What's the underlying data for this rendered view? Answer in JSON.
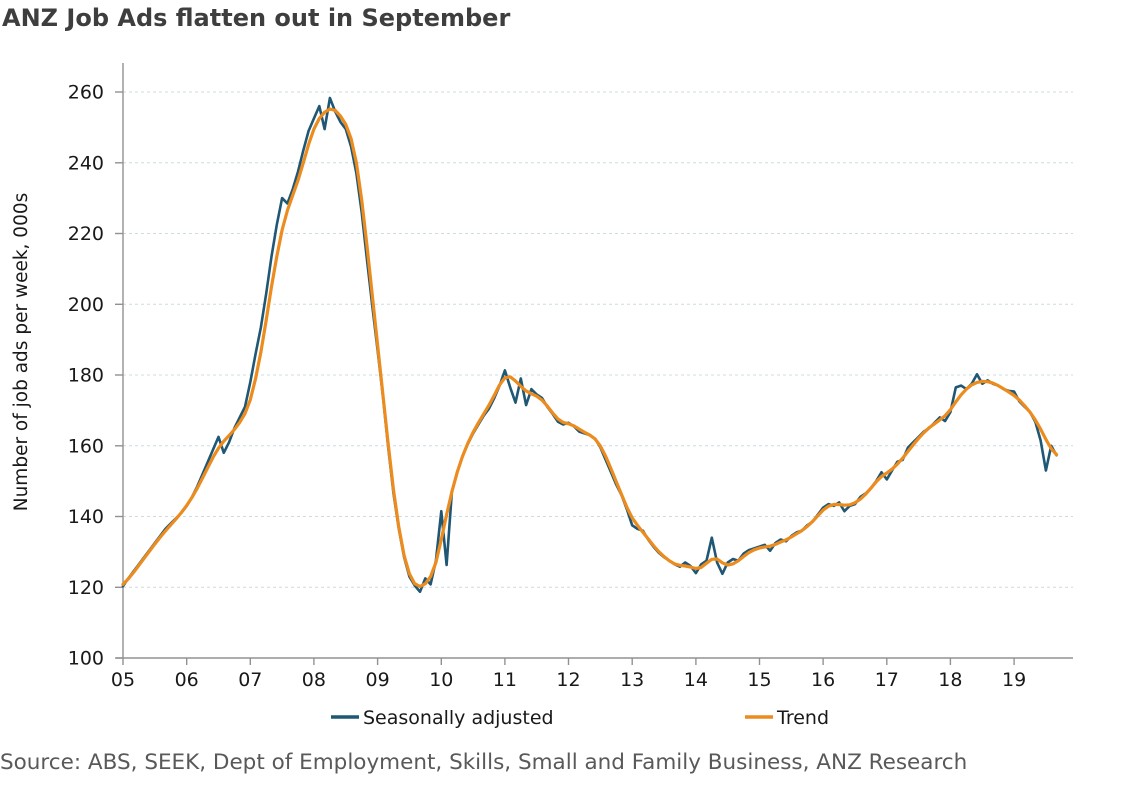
{
  "title": "ANZ Job Ads flatten out in September",
  "source": "Source: ABS, SEEK, Dept of Employment, Skills, Small and Family Business, ANZ Research",
  "chart_data": {
    "type": "line",
    "title": "ANZ Job Ads flatten out in September",
    "xlabel": "",
    "ylabel": "Number of job ads per week, 000s",
    "ylim": [
      100,
      260
    ],
    "y_ticks": [
      100,
      120,
      140,
      160,
      180,
      200,
      220,
      240,
      260
    ],
    "x_tick_labels": [
      "05",
      "06",
      "07",
      "08",
      "09",
      "10",
      "11",
      "12",
      "13",
      "14",
      "15",
      "16",
      "17",
      "18",
      "19"
    ],
    "x_start_year": 2005,
    "x_step": "monthly",
    "x_end": "Sep 2019",
    "grid": "horizontal dashed",
    "legend_position": "bottom",
    "series": [
      {
        "name": "Seasonally adjusted",
        "color": "#1f5774",
        "values": [
          120.3,
          122.5,
          124.5,
          126.5,
          128.5,
          130.5,
          132.5,
          134.5,
          136.5,
          138.0,
          139.5,
          141.0,
          143.0,
          145.5,
          148.5,
          152.0,
          155.5,
          159.0,
          162.5,
          158.0,
          161.0,
          165.0,
          168.0,
          171.0,
          178.0,
          186.0,
          193.5,
          203.0,
          213.5,
          222.5,
          230.0,
          228.5,
          232.5,
          237.5,
          243.5,
          249.0,
          252.5,
          256.0,
          249.5,
          258.3,
          254.5,
          251.5,
          249.5,
          244.5,
          237.0,
          226.0,
          212.5,
          199.5,
          187.0,
          174.0,
          159.5,
          146.5,
          136.5,
          128.5,
          123.0,
          120.5,
          118.7,
          122.5,
          120.8,
          127.5,
          141.5,
          126.3,
          147.0,
          152.5,
          157.0,
          160.5,
          163.5,
          166.0,
          168.5,
          170.5,
          173.5,
          177.0,
          181.3,
          176.5,
          172.2,
          179.0,
          171.5,
          176.0,
          174.5,
          173.5,
          171.0,
          169.0,
          166.8,
          166.0,
          166.5,
          165.5,
          164.0,
          163.5,
          163.0,
          162.0,
          159.5,
          156.0,
          152.5,
          149.0,
          146.0,
          142.0,
          137.5,
          136.5,
          136.0,
          133.5,
          131.5,
          129.8,
          128.5,
          127.5,
          126.5,
          125.8,
          127.0,
          126.0,
          124.0,
          126.5,
          127.5,
          134.0,
          127.0,
          123.8,
          127.0,
          128.0,
          127.5,
          129.5,
          130.5,
          131.0,
          131.5,
          132.0,
          130.3,
          132.5,
          133.5,
          133.0,
          134.5,
          135.5,
          136.0,
          137.5,
          138.5,
          140.5,
          142.5,
          143.5,
          143.0,
          144.0,
          141.5,
          143.0,
          143.5,
          145.5,
          146.5,
          148.0,
          150.0,
          152.5,
          150.5,
          153.0,
          155.5,
          156.0,
          159.5,
          161.0,
          162.5,
          164.0,
          165.0,
          166.5,
          168.0,
          167.0,
          169.5,
          176.5,
          177.0,
          176.0,
          177.5,
          180.2,
          177.5,
          178.5,
          177.5,
          177.0,
          176.0,
          175.5,
          175.3,
          172.5,
          171.0,
          169.5,
          166.8,
          161.5,
          153.0,
          160.0,
          157.3
        ]
      },
      {
        "name": "Trend",
        "color": "#ec8c1e",
        "values": [
          120.8,
          122.4,
          124.2,
          126.2,
          128.2,
          130.2,
          132.2,
          134.1,
          135.9,
          137.6,
          139.3,
          141.1,
          143.1,
          145.4,
          148.0,
          150.9,
          153.9,
          156.8,
          159.3,
          161.3,
          162.9,
          164.6,
          166.6,
          169.1,
          173.0,
          179.0,
          186.5,
          195.5,
          205.0,
          213.5,
          221.0,
          226.5,
          230.8,
          235.0,
          240.0,
          245.2,
          249.5,
          252.5,
          254.3,
          255.2,
          254.8,
          253.2,
          250.8,
          246.8,
          240.0,
          229.5,
          216.5,
          202.5,
          188.5,
          174.5,
          160.5,
          147.5,
          137.0,
          129.0,
          123.8,
          121.0,
          120.2,
          121.0,
          123.0,
          127.0,
          133.5,
          140.5,
          147.0,
          152.5,
          157.0,
          160.7,
          163.8,
          166.5,
          169.0,
          171.5,
          174.3,
          177.2,
          179.2,
          179.5,
          178.3,
          176.8,
          175.5,
          174.7,
          174.0,
          172.9,
          171.2,
          169.3,
          167.6,
          166.6,
          166.2,
          165.6,
          164.7,
          163.8,
          163.0,
          161.9,
          159.9,
          157.0,
          153.5,
          149.8,
          146.2,
          142.6,
          139.6,
          137.5,
          135.6,
          133.7,
          131.8,
          130.1,
          128.7,
          127.5,
          126.6,
          126.2,
          126.0,
          125.7,
          125.3,
          125.6,
          126.8,
          127.9,
          128.0,
          126.9,
          126.3,
          126.6,
          127.5,
          128.7,
          129.8,
          130.6,
          131.1,
          131.4,
          131.6,
          132.1,
          132.8,
          133.4,
          134.2,
          135.1,
          136.0,
          137.2,
          138.6,
          140.2,
          141.8,
          142.9,
          143.4,
          143.4,
          143.2,
          143.3,
          143.9,
          144.9,
          146.3,
          148.0,
          149.8,
          151.3,
          152.3,
          153.4,
          154.8,
          156.5,
          158.4,
          160.3,
          162.1,
          163.7,
          165.1,
          166.2,
          167.3,
          168.5,
          170.2,
          172.4,
          174.4,
          176.0,
          177.2,
          177.9,
          178.2,
          178.1,
          177.7,
          177.0,
          176.1,
          175.2,
          174.2,
          172.9,
          171.3,
          169.5,
          167.3,
          164.7,
          161.8,
          159.2,
          157.5
        ]
      }
    ]
  }
}
